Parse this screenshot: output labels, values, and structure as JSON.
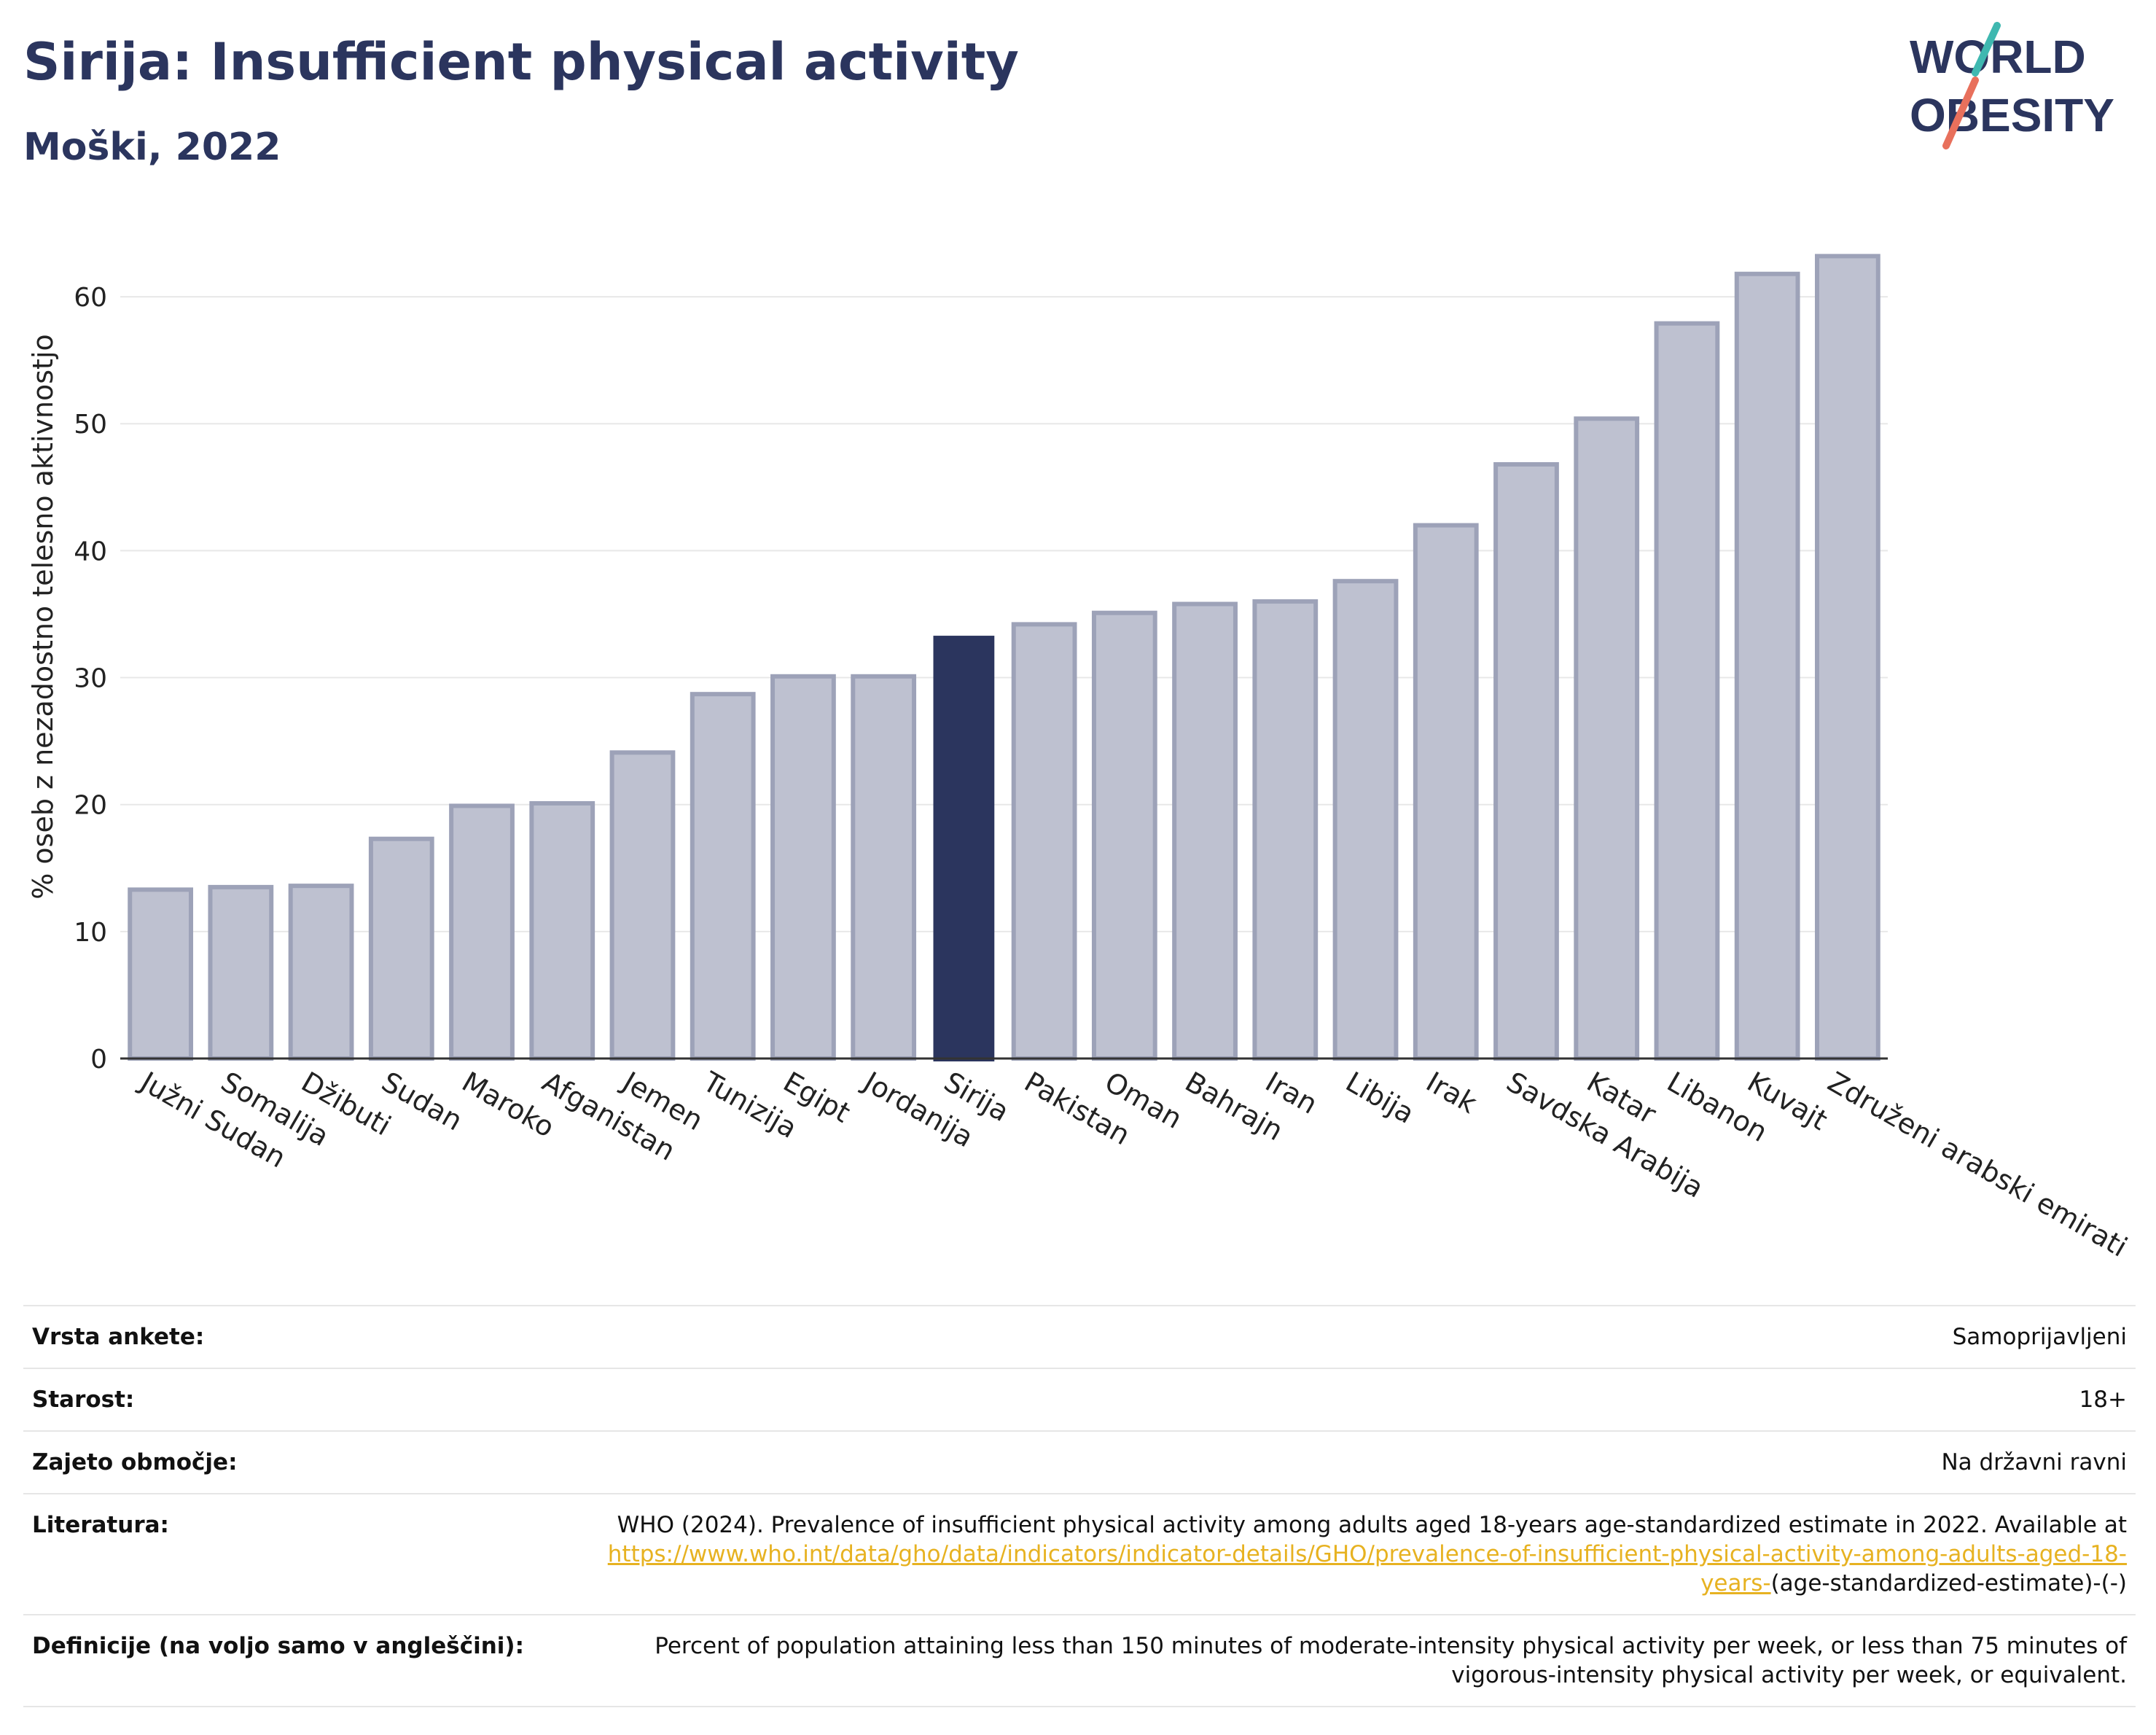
{
  "header": {
    "title": "Sirija: Insufficient physical activity",
    "subtitle": "Moški, 2022"
  },
  "logo": {
    "line1": "WORLD",
    "line2": "OBESITY"
  },
  "colors": {
    "highlight": "#2b355e",
    "bar": "#bec1d0",
    "bar_stroke": "#9da2b8",
    "title": "#2b355e",
    "link": "#e7b221"
  },
  "chart_data": {
    "type": "bar",
    "ylabel": "% oseb z nezadostno telesno aktivnostjo",
    "ylim": [
      0,
      65
    ],
    "yticks": [
      0,
      10,
      20,
      30,
      40,
      50,
      60
    ],
    "grid": true,
    "highlight": "Sirija",
    "categories": [
      "Južni Sudan",
      "Somalija",
      "Džibuti",
      "Sudan",
      "Maroko",
      "Afganistan",
      "Jemen",
      "Tunizija",
      "Egipt",
      "Jordanija",
      "Sirija",
      "Pakistan",
      "Oman",
      "Bahrajn",
      "Iran",
      "Libija",
      "Irak",
      "Savdska Arabija",
      "Katar",
      "Libanon",
      "Kuvajt",
      "Združeni arabski emirati"
    ],
    "values": [
      13.3,
      13.5,
      13.6,
      17.3,
      19.9,
      20.1,
      24.1,
      28.7,
      30.1,
      30.1,
      33.3,
      34.2,
      35.1,
      35.8,
      36.0,
      37.6,
      42.0,
      46.8,
      50.4,
      57.9,
      61.8,
      63.2
    ]
  },
  "meta": {
    "survey_label": "Vrsta ankete:",
    "survey_value": "Samoprijavljeni",
    "age_label": "Starost:",
    "age_value": "18+",
    "coverage_label": "Zajeto območje:",
    "coverage_value": "Na državni ravni",
    "ref_label": "Literatura:",
    "ref_text": "WHO (2024). Prevalence of insufficient physical activity among adults aged 18-years age-standardized estimate in 2022. Available at",
    "ref_link": "https://www.who.int/data/gho/data/indicators/indicator-details/GHO/prevalence-of-insufficient-physical-activity-among-adults-aged-18-years-",
    "ref_tail": "(age-standardized-estimate)-(-)",
    "def_label": "Definicije (na voljo samo v angleščini):",
    "def_value": "Percent of population attaining less than 150 minutes of moderate-intensity physical activity per week, or less than 75 minutes of vigorous-intensity physical activity per week, or equivalent."
  }
}
